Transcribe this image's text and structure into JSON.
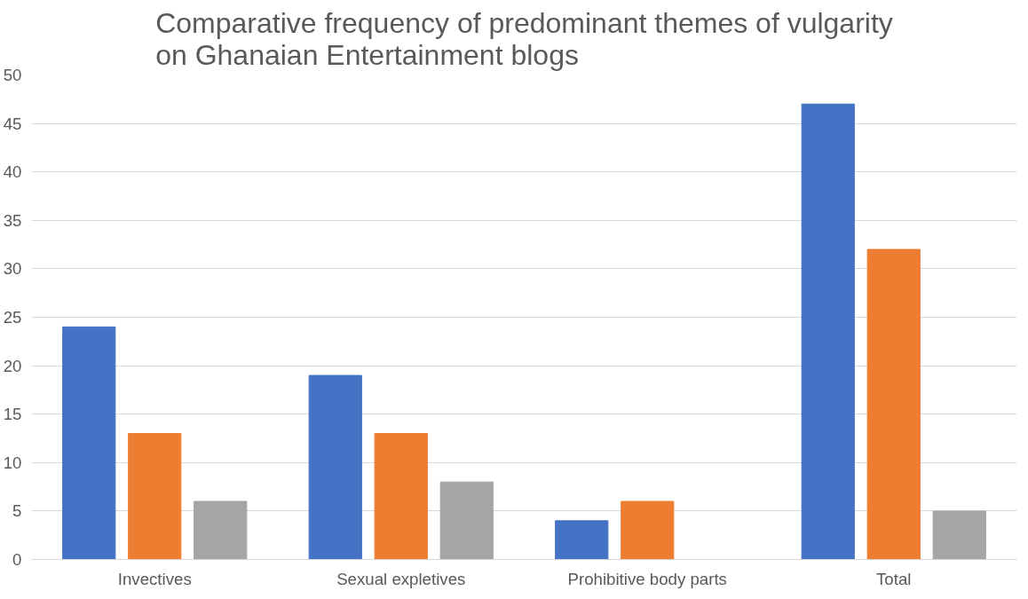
{
  "chart_data": {
    "type": "bar",
    "title": "Comparative frequency of predominant themes of vulgarity on Ghanaian Entertainment blogs",
    "categories": [
      "Invectives",
      "Sexual expletives",
      "Prohibitive body parts",
      "Total"
    ],
    "series": [
      {
        "color": "#4472c4",
        "values": [
          24,
          19,
          4,
          47
        ]
      },
      {
        "color": "#ed7d31",
        "values": [
          13,
          13,
          6,
          32
        ]
      },
      {
        "color": "#a5a5a5",
        "values": [
          6,
          8,
          0,
          5
        ]
      }
    ],
    "ylim": [
      0,
      50
    ],
    "yticks": [
      0,
      5,
      10,
      15,
      20,
      25,
      30,
      35,
      40,
      45,
      50
    ],
    "grid": "y"
  }
}
